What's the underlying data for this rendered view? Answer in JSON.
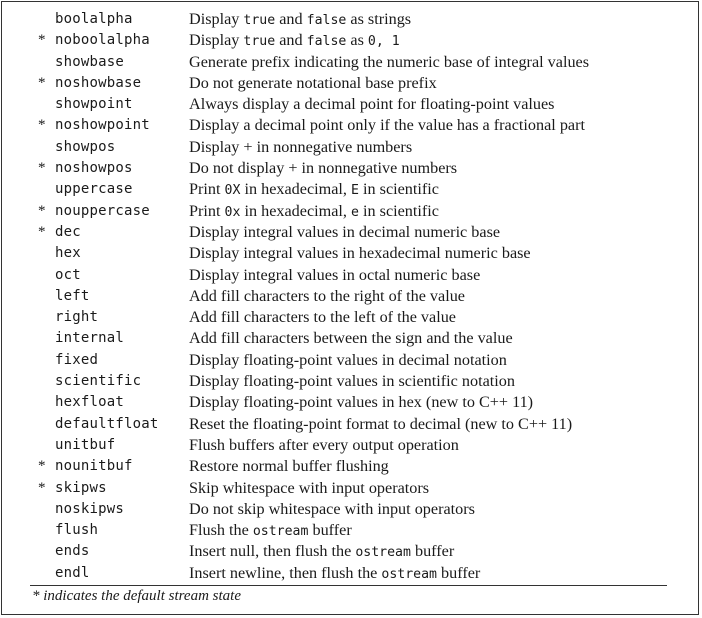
{
  "rows": [
    {
      "star": "",
      "name": "boolalpha",
      "desc": [
        {
          "t": "Display "
        },
        {
          "c": "true"
        },
        {
          "t": " and "
        },
        {
          "c": "false"
        },
        {
          "t": " as strings"
        }
      ]
    },
    {
      "star": "*",
      "name": "noboolalpha",
      "desc": [
        {
          "t": "Display "
        },
        {
          "c": "true"
        },
        {
          "t": " and "
        },
        {
          "c": "false"
        },
        {
          "t": " as "
        },
        {
          "c": "0, 1"
        }
      ]
    },
    {
      "star": "",
      "name": "showbase",
      "desc": [
        {
          "t": "Generate prefix indicating the numeric base of integral values"
        }
      ]
    },
    {
      "star": "*",
      "name": "noshowbase",
      "desc": [
        {
          "t": "Do not generate notational base prefix"
        }
      ]
    },
    {
      "star": "",
      "name": "showpoint",
      "desc": [
        {
          "t": "Always display a decimal point for floating-point values"
        }
      ]
    },
    {
      "star": "*",
      "name": "noshowpoint",
      "desc": [
        {
          "t": "Display a decimal point only if the value has a fractional part"
        }
      ]
    },
    {
      "star": "",
      "name": "showpos",
      "desc": [
        {
          "t": "Display + in nonnegative numbers"
        }
      ]
    },
    {
      "star": "*",
      "name": "noshowpos",
      "desc": [
        {
          "t": "Do not display + in nonnegative numbers"
        }
      ]
    },
    {
      "star": "",
      "name": "uppercase",
      "desc": [
        {
          "t": "Print "
        },
        {
          "c": "0X"
        },
        {
          "t": " in hexadecimal, "
        },
        {
          "c": "E"
        },
        {
          "t": " in scientific"
        }
      ]
    },
    {
      "star": "*",
      "name": "nouppercase",
      "desc": [
        {
          "t": "Print "
        },
        {
          "c": "0x"
        },
        {
          "t": " in hexadecimal, "
        },
        {
          "c": "e"
        },
        {
          "t": " in scientific"
        }
      ]
    },
    {
      "star": "*",
      "name": "dec",
      "desc": [
        {
          "t": "Display integral values in decimal numeric base"
        }
      ]
    },
    {
      "star": "",
      "name": "hex",
      "desc": [
        {
          "t": "Display integral values in hexadecimal numeric base"
        }
      ]
    },
    {
      "star": "",
      "name": "oct",
      "desc": [
        {
          "t": "Display integral values in octal numeric base"
        }
      ]
    },
    {
      "star": "",
      "name": "left",
      "desc": [
        {
          "t": "Add fill characters to the right of the value"
        }
      ]
    },
    {
      "star": "",
      "name": "right",
      "desc": [
        {
          "t": "Add fill characters to the left of the value"
        }
      ]
    },
    {
      "star": "",
      "name": "internal",
      "desc": [
        {
          "t": "Add fill characters between the sign and the value"
        }
      ]
    },
    {
      "star": "",
      "name": "fixed",
      "desc": [
        {
          "t": "Display floating-point values in decimal notation"
        }
      ]
    },
    {
      "star": "",
      "name": "scientific",
      "desc": [
        {
          "t": "Display floating-point values in scientific notation"
        }
      ]
    },
    {
      "star": "",
      "name": "hexfloat",
      "desc": [
        {
          "t": "Display floating-point values in hex (new to C++ 11)"
        }
      ]
    },
    {
      "star": "",
      "name": "defaultfloat",
      "desc": [
        {
          "t": "Reset the floating-point format to decimal (new to C++ 11)"
        }
      ]
    },
    {
      "star": "",
      "name": "unitbuf",
      "desc": [
        {
          "t": "Flush buffers after every output operation"
        }
      ]
    },
    {
      "star": "*",
      "name": "nounitbuf",
      "desc": [
        {
          "t": "Restore normal buffer flushing"
        }
      ]
    },
    {
      "star": "*",
      "name": "skipws",
      "desc": [
        {
          "t": "Skip whitespace with input operators"
        }
      ]
    },
    {
      "star": "",
      "name": "noskipws",
      "desc": [
        {
          "t": "Do not skip whitespace with input operators"
        }
      ]
    },
    {
      "star": "",
      "name": "flush",
      "desc": [
        {
          "t": "Flush the "
        },
        {
          "c": "ostream"
        },
        {
          "t": " buffer"
        }
      ]
    },
    {
      "star": "",
      "name": "ends",
      "desc": [
        {
          "t": "Insert null, then flush the "
        },
        {
          "c": "ostream"
        },
        {
          "t": " buffer"
        }
      ]
    },
    {
      "star": "",
      "name": "endl",
      "desc": [
        {
          "t": "Insert newline, then flush the "
        },
        {
          "c": "ostream"
        },
        {
          "t": " buffer"
        }
      ]
    }
  ],
  "footnote": "* indicates the default stream state"
}
